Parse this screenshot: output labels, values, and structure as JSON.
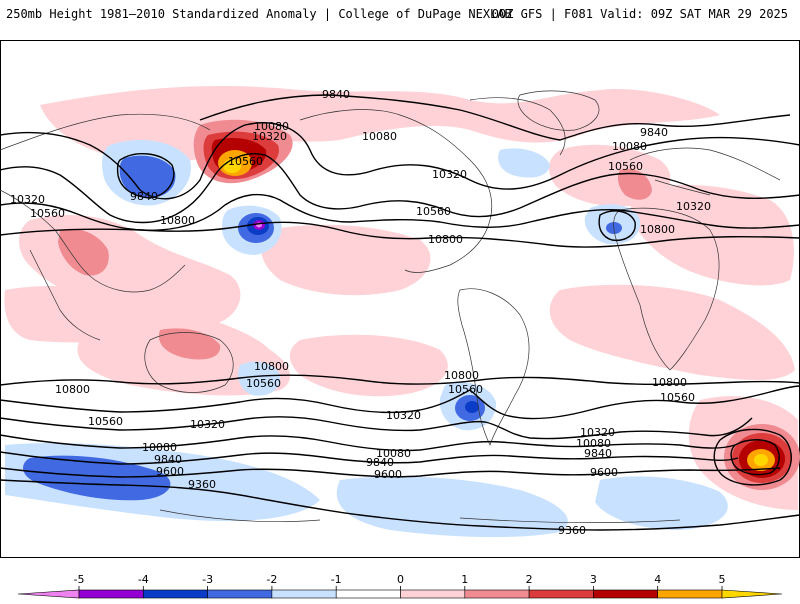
{
  "header": {
    "title_left": "250mb Height 1981–2010 Standardized Anomaly | College of DuPage NEXLAB",
    "title_right": "00Z GFS | F081 Valid: 09Z SAT MAR 29 2025"
  },
  "map": {
    "variable": "250mb height",
    "contour_labels": {
      "c9840_north": "9840",
      "c9840_east": "9840",
      "c9840_west": "9840",
      "c10080_a": "10080",
      "c10080_b": "10080",
      "c10080_c": "10080",
      "c10320_a": "10320",
      "c10320_b": "10320",
      "c10320_c": "10320",
      "c10320_west": "10320",
      "c10560_a": "10560",
      "c10560_b": "10560",
      "c10560_c": "10560",
      "c10560_west": "10560",
      "c10800_a": "10800",
      "c10800_b": "10800",
      "c10800_c": "10800",
      "s10800_a": "10800",
      "s10800_b": "10800",
      "s10800_c": "10800",
      "s10800_d": "10800",
      "s10560_a": "10560",
      "s10560_b": "10560",
      "s10560_c": "10560",
      "s10560_d": "10560",
      "s10320_a": "10320",
      "s10320_b": "10320",
      "s10320_c": "10320",
      "s10080_a": "10080",
      "s10080_b": "10080",
      "s10080_c": "10080",
      "s9840_a": "9840",
      "s9840_b": "9840",
      "s9840_c": "9840",
      "s9600_a": "9600",
      "s9600_b": "9600",
      "s9600_c": "9600",
      "s9360_a": "9360",
      "s9360_b": "9360"
    }
  },
  "colorbar": {
    "ticks": [
      "-5",
      "-4",
      "-3",
      "-2",
      "-1",
      "0",
      "1",
      "2",
      "3",
      "4",
      "5"
    ],
    "colors": [
      "#ee82ee",
      "#9400d3",
      "#0a3cc8",
      "#4169e1",
      "#c8e1ff",
      "#ffffff",
      "#ffd2d7",
      "#f08c91",
      "#dc3c3c",
      "#b40000",
      "#ffa500",
      "#ffd700"
    ]
  }
}
